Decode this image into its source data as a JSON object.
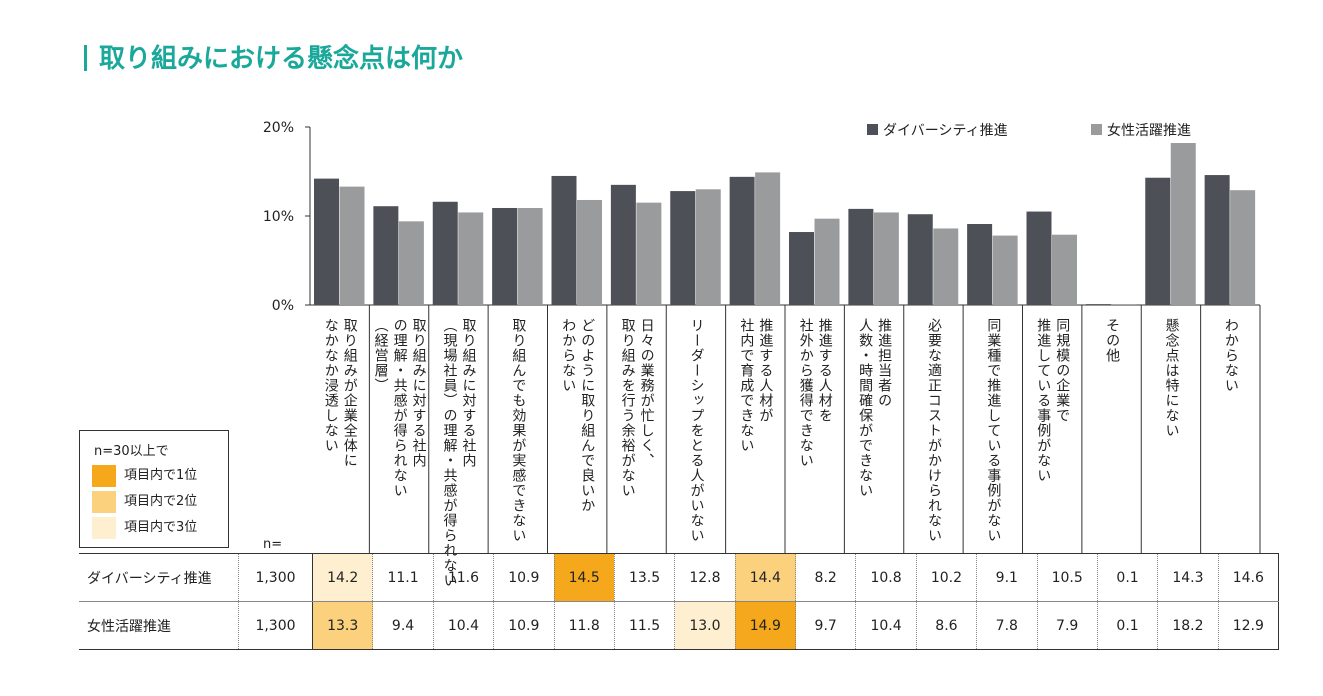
{
  "title": "取り組みにおける懸念点は何か",
  "legend_box": {
    "header": "n=30以上で",
    "items": [
      {
        "label": "項目内で1位",
        "color": "#f5a81c"
      },
      {
        "label": "項目内で2位",
        "color": "#fbd17e"
      },
      {
        "label": "項目内で3位",
        "color": "#fdefd0"
      }
    ]
  },
  "n_label": "n=",
  "chart_data": {
    "type": "bar",
    "yticks": [
      "20%",
      "10%",
      "0%"
    ],
    "ylim": [
      0,
      20
    ],
    "legend_position": "top-right",
    "categories": [
      "取り組みが企業全体に\nなかなか浸透しない",
      "取り組みに対する社内\nの理解・共感が得られない\n（経営層）",
      "取り組みに対する社内\n（現場社員）の理解・共感が得られない",
      "取り組んでも効果が実感できない",
      "どのように取り組んで良いか\nわからない",
      "日々の業務が忙しく、\n取り組みを行う余裕がない",
      "リーダーシップをとる人がいない",
      "推進する人材が\n社内で育成できない",
      "推進する人材を\n社外から獲得できない",
      "推進担当者の\n人数・時間確保ができない",
      "必要な適正コストがかけられない",
      "同業種で推進している事例がない",
      "同規模の企業で\n推進している事例がない",
      "その他",
      "懸念点は特にない",
      "わからない"
    ],
    "series": [
      {
        "name": "ダイバーシティ推進",
        "color": "#4d5157",
        "n": "1,300",
        "values": [
          14.2,
          11.1,
          11.6,
          10.9,
          14.5,
          13.5,
          12.8,
          14.4,
          8.2,
          10.8,
          10.2,
          9.1,
          10.5,
          0.1,
          14.3,
          14.6
        ],
        "labels": [
          "14.2",
          "11.1",
          "11.6",
          "10.9",
          "14.5",
          "13.5",
          "12.8",
          "14.4",
          "8.2",
          "10.8",
          "10.2",
          "9.1",
          "10.5",
          "0.1",
          "14.3",
          "14.6"
        ],
        "rank": [
          3,
          0,
          0,
          0,
          1,
          0,
          0,
          2,
          0,
          0,
          0,
          0,
          0,
          0,
          0,
          0
        ]
      },
      {
        "name": "女性活躍推進",
        "color": "#9a9b9d",
        "n": "1,300",
        "values": [
          13.3,
          9.4,
          10.4,
          10.9,
          11.8,
          11.5,
          13.0,
          14.9,
          9.7,
          10.4,
          8.6,
          7.8,
          7.9,
          0.1,
          18.2,
          12.9
        ],
        "labels": [
          "13.3",
          "9.4",
          "10.4",
          "10.9",
          "11.8",
          "11.5",
          "13.0",
          "14.9",
          "9.7",
          "10.4",
          "8.6",
          "7.8",
          "7.9",
          "0.1",
          "18.2",
          "12.9"
        ],
        "rank": [
          2,
          0,
          0,
          0,
          0,
          0,
          3,
          1,
          0,
          0,
          0,
          0,
          0,
          0,
          0,
          0
        ]
      }
    ]
  }
}
